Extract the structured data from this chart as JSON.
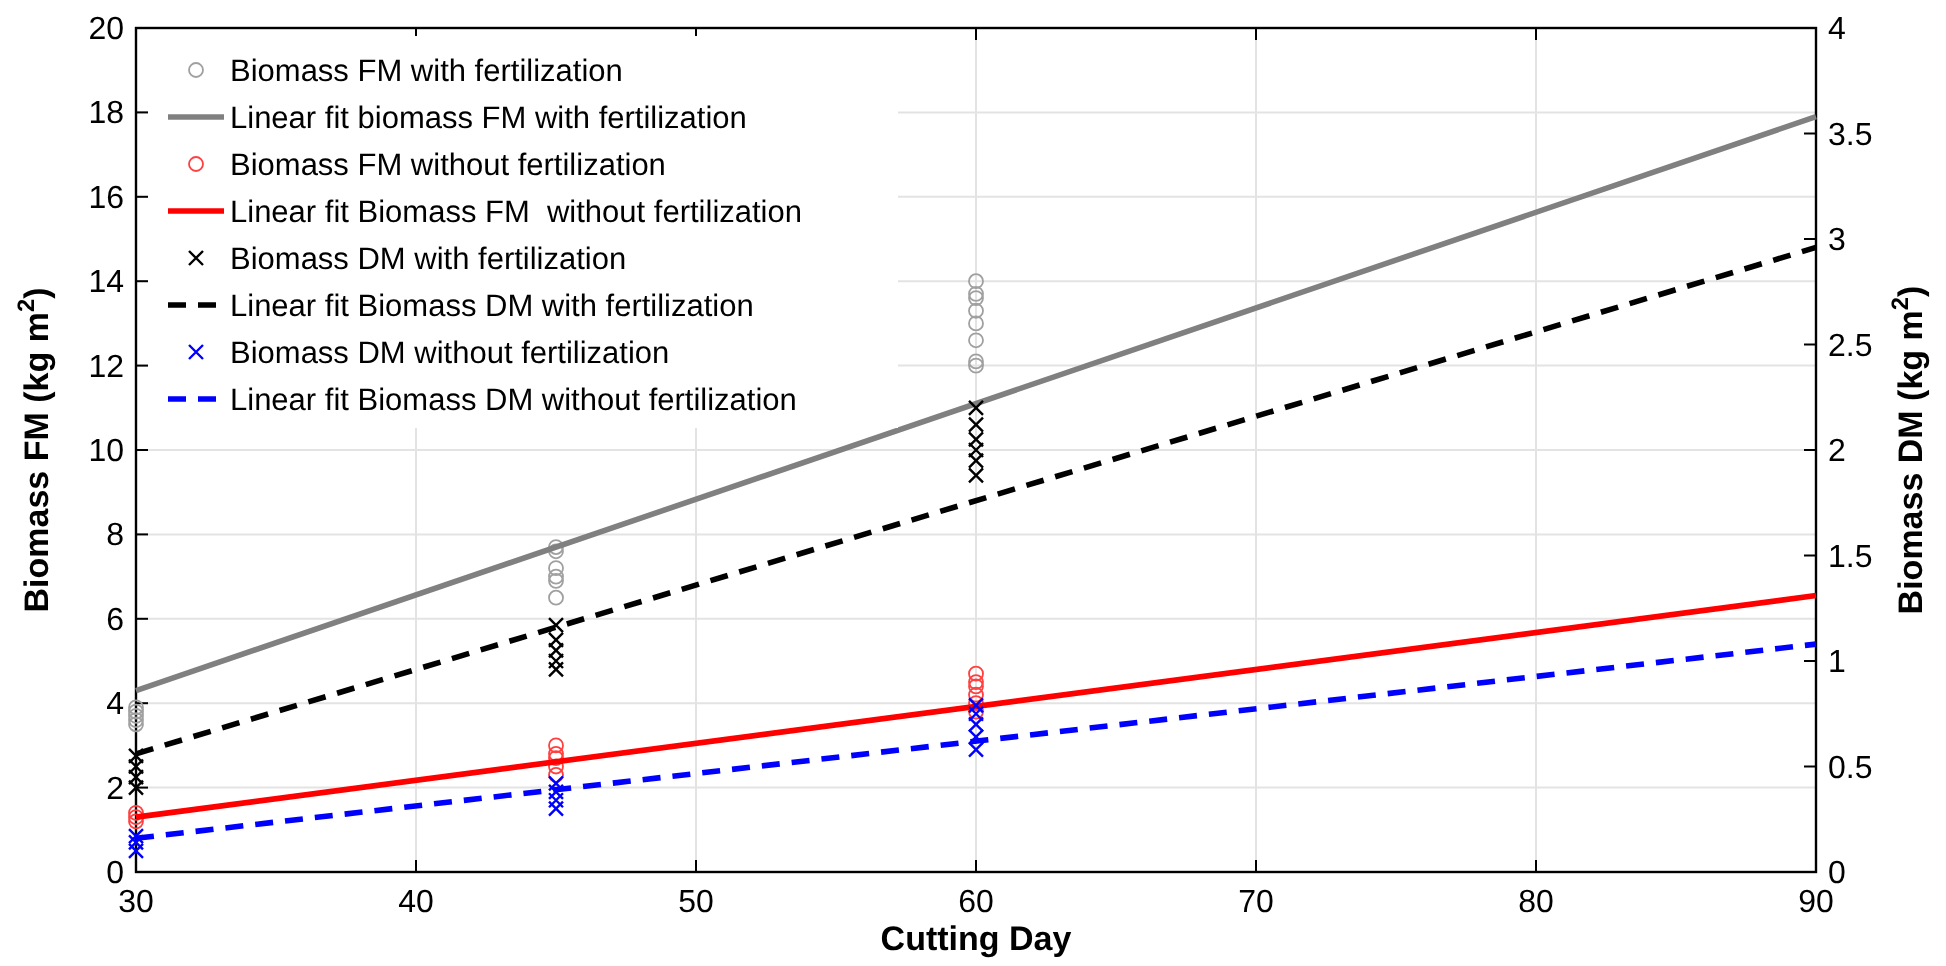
{
  "chart_data": {
    "type": "scatter",
    "xlabel": "Cutting Day",
    "ylabel": "Biomass FM (kg m$^{2}$)",
    "y2label": "Biomass DM (kg m$^{2}$)",
    "xlim": [
      30,
      90
    ],
    "xticks": [
      30,
      40,
      50,
      60,
      70,
      80,
      90
    ],
    "ylim": [
      0,
      20
    ],
    "yticks": [
      0,
      2,
      4,
      6,
      8,
      10,
      12,
      14,
      16,
      18,
      20
    ],
    "y2lim": [
      0,
      4
    ],
    "y2ticks": [
      0,
      0.5,
      1,
      1.5,
      2,
      2.5,
      3,
      3.5,
      4
    ],
    "grid": true,
    "legend": "top left",
    "series": [
      {
        "name": "Biomass FM with fertilization",
        "marker": "circle",
        "color": "#a0a0a0",
        "x": [
          30,
          30,
          30,
          30,
          30,
          45,
          45,
          45,
          45,
          45,
          45,
          60,
          60,
          60,
          60,
          60,
          60,
          60,
          60
        ],
        "values": [
          3.5,
          3.6,
          3.7,
          3.8,
          3.9,
          6.5,
          6.9,
          7.0,
          7.2,
          7.6,
          7.7,
          12.0,
          12.1,
          12.6,
          13.0,
          13.3,
          13.6,
          13.7,
          14.0
        ]
      },
      {
        "name": "Linear fit biomass FM with fertilization",
        "type": "line",
        "line_style": "solid",
        "color": "#808080",
        "x": [
          30,
          90
        ],
        "values": [
          4.3,
          17.9
        ]
      },
      {
        "name": "Biomass FM without fertilization",
        "marker": "circle",
        "color": "#ff4040",
        "x": [
          30,
          30,
          30,
          45,
          45,
          45,
          45,
          45,
          60,
          60,
          60,
          60,
          60,
          60
        ],
        "values": [
          1.2,
          1.3,
          1.4,
          2.3,
          2.5,
          2.7,
          2.8,
          3.0,
          3.8,
          4.0,
          4.2,
          4.4,
          4.5,
          4.7
        ]
      },
      {
        "name": "Linear fit Biomass FM  without fertilization",
        "type": "line",
        "line_style": "solid",
        "color": "#ff0000",
        "x": [
          30,
          90
        ],
        "values": [
          1.3,
          6.55
        ]
      },
      {
        "name": "Biomass DM with fertilization",
        "marker": "cross",
        "axis": "y2",
        "color": "#000000",
        "x": [
          30,
          30,
          30,
          30,
          45,
          45,
          45,
          45,
          45,
          60,
          60,
          60,
          60,
          60,
          60
        ],
        "values": [
          0.4,
          0.45,
          0.5,
          0.55,
          0.96,
          1.0,
          1.05,
          1.1,
          1.17,
          1.88,
          1.95,
          2.0,
          2.05,
          2.12,
          2.2
        ]
      },
      {
        "name": "Linear fit Biomass DM with fertilization",
        "type": "line",
        "line_style": "dashed",
        "axis": "y2",
        "color": "#000000",
        "x": [
          30,
          90
        ],
        "values": [
          0.56,
          2.96
        ]
      },
      {
        "name": "Biomass DM without fertilization",
        "marker": "cross",
        "axis": "y2",
        "color": "#0000ff",
        "x": [
          30,
          30,
          30,
          45,
          45,
          45,
          45,
          60,
          60,
          60,
          60,
          60
        ],
        "values": [
          0.1,
          0.14,
          0.17,
          0.3,
          0.34,
          0.38,
          0.42,
          0.58,
          0.64,
          0.7,
          0.75,
          0.79
        ]
      },
      {
        "name": "Linear fit Biomass DM without fertilization",
        "type": "line",
        "line_style": "dashed",
        "axis": "y2",
        "color": "#0000ff",
        "x": [
          30,
          90
        ],
        "values": [
          0.16,
          1.08
        ]
      }
    ]
  }
}
